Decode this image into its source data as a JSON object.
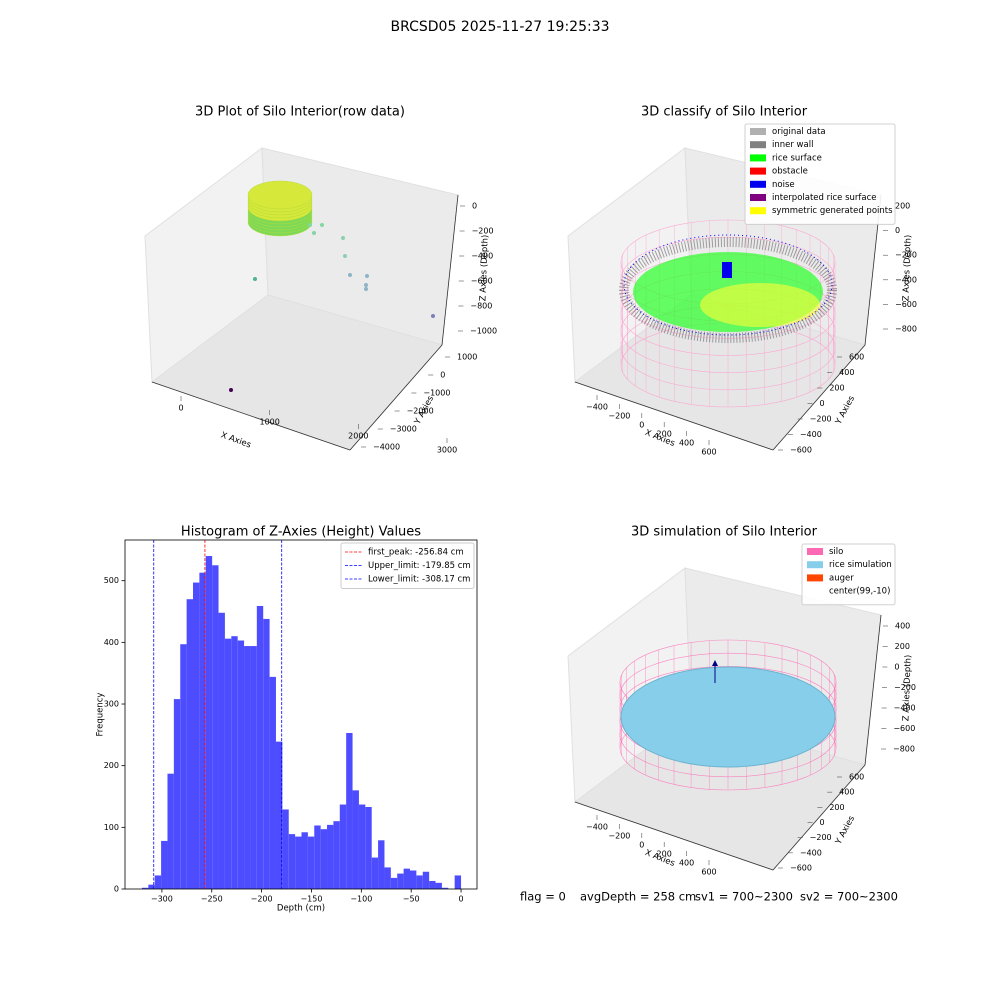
{
  "title": "BRCSD05 2025-11-27 19:25:33",
  "footer": [
    "flag = 0",
    "avgDepth = 258 cm",
    "sv1 = 700~2300",
    "sv2 = 700~2300"
  ],
  "chart_data": [
    {
      "type": "scatter3d",
      "title": "3D Plot of Silo Interior(row data)",
      "xlabel": "X Axies",
      "ylabel": "Y Axies",
      "zlabel": "Z Axies (Depth)",
      "xticks": [
        0,
        1000,
        2000,
        3000
      ],
      "yticks": [
        1000,
        0,
        {
          "value": -1000,
          "label": "−1000"
        },
        {
          "value": -2000,
          "label": "−2000"
        },
        {
          "value": -3000,
          "label": "−3000"
        },
        {
          "value": -4000,
          "label": "−4000"
        }
      ],
      "zticks": [
        0,
        {
          "value": -200,
          "label": "−200"
        },
        {
          "value": -400,
          "label": "−400"
        },
        {
          "value": -600,
          "label": "−600"
        },
        {
          "value": -800,
          "label": "−800"
        },
        {
          "value": -1000,
          "label": "−1000"
        }
      ]
    },
    {
      "type": "classify3d",
      "title": "3D classify of Silo Interior",
      "xlabel": "X Axies",
      "ylabel": "Y Axies",
      "zlabel": "Z Axies (Depth)",
      "xticks": [
        {
          "value": -400,
          "label": "−400"
        },
        {
          "value": -200,
          "label": "−200"
        },
        0,
        200,
        400,
        600
      ],
      "yticks": [
        600,
        400,
        200,
        0,
        {
          "value": -200,
          "label": "−200"
        },
        {
          "value": -400,
          "label": "−400"
        },
        {
          "value": -600,
          "label": "−600"
        }
      ],
      "zticks": [
        200,
        0,
        {
          "value": -200,
          "label": "−200"
        },
        {
          "value": -400,
          "label": "−400"
        },
        {
          "value": -600,
          "label": "−600"
        },
        {
          "value": -800,
          "label": "−800"
        }
      ],
      "legend": [
        {
          "name": "original data",
          "color": "#b0b0b0"
        },
        {
          "name": "inner wall",
          "color": "#808080"
        },
        {
          "name": "rice surface",
          "color": "#00ff00"
        },
        {
          "name": "obstacle",
          "color": "#ff0000"
        },
        {
          "name": "noise",
          "color": "#0000ee"
        },
        {
          "name": "interpolated rice surface",
          "color": "#800080"
        },
        {
          "name": "symmetric generated points",
          "color": "#ffff00"
        }
      ]
    },
    {
      "type": "histogram",
      "title": "Histogram of Z-Axies (Height) Values",
      "xlabel": "Depth (cm)",
      "ylabel": "Frequency",
      "color": "#4d4dff",
      "bins": [
        -320,
        -313.6,
        -307.2,
        -300.8,
        -294.4,
        -288,
        -281.6,
        -275.2,
        -268.8,
        -262.4,
        -256,
        -249.6,
        -243.2,
        -236.8,
        -230.4,
        -224,
        -217.6,
        -211.2,
        -204.8,
        -198.4,
        -192,
        -185.6,
        -179.2,
        -172.8,
        -166.4,
        -160,
        -153.6,
        -147.2,
        -140.8,
        -134.4,
        -128,
        -121.6,
        -115.2,
        -108.8,
        -102.4,
        -96,
        -89.6,
        -83.2,
        -76.8,
        -70.4,
        -64,
        -57.6,
        -51.2,
        -44.8,
        -38.4,
        -32,
        -25.6,
        -19.2,
        -12.8,
        -6.4,
        0
      ],
      "values": [
        2,
        7,
        22,
        78,
        187,
        308,
        397,
        470,
        497,
        513,
        540,
        525,
        448,
        406,
        410,
        403,
        394,
        394,
        459,
        438,
        344,
        239,
        129,
        89,
        85,
        92,
        85,
        103,
        97,
        104,
        110,
        137,
        253,
        160,
        137,
        133,
        51,
        79,
        35,
        18,
        25,
        33,
        30,
        22,
        28,
        13,
        10,
        2,
        0,
        22
      ],
      "vlines": [
        {
          "name": "first_peak: -256.84 cm",
          "value": -256.84,
          "color": "#ff0000"
        },
        {
          "name": "Upper_limit: -179.85 cm",
          "value": -179.85,
          "color": "#0000ff"
        },
        {
          "name": "Lower_limit: -308.17 cm",
          "value": -308.17,
          "color": "#0000ff"
        }
      ],
      "legend_position": "upper right",
      "xlim": [
        -337,
        16
      ],
      "ylim": [
        0,
        566
      ],
      "xticks": [
        {
          "value": -300,
          "label": "−300"
        },
        {
          "value": -250,
          "label": "−250"
        },
        {
          "value": -200,
          "label": "−200"
        },
        {
          "value": -150,
          "label": "−150"
        },
        {
          "value": -100,
          "label": "−100"
        },
        {
          "value": -50,
          "label": "−50"
        },
        0
      ],
      "yticks": [
        0,
        100,
        200,
        300,
        400,
        500
      ]
    },
    {
      "type": "simulation3d",
      "title": "3D simulation of Silo Interior",
      "xlabel": "X Axies",
      "ylabel": "Y Axies",
      "zlabel": "Z Axies (Depth)",
      "xticks": [
        {
          "value": -400,
          "label": "−400"
        },
        {
          "value": -200,
          "label": "−200"
        },
        0,
        200,
        400,
        600
      ],
      "yticks": [
        600,
        400,
        200,
        0,
        {
          "value": -200,
          "label": "−200"
        },
        {
          "value": -400,
          "label": "−400"
        },
        {
          "value": -600,
          "label": "−600"
        }
      ],
      "zticks": [
        400,
        200,
        0,
        {
          "value": -200,
          "label": "−200"
        },
        {
          "value": -400,
          "label": "−400"
        },
        {
          "value": -600,
          "label": "−600"
        },
        {
          "value": -800,
          "label": "−800"
        }
      ],
      "legend": [
        {
          "name": "silo",
          "color": "#ff69b4"
        },
        {
          "name": "rice simulation",
          "color": "#87ceeb"
        },
        {
          "name": "auger",
          "color": "#ff4500"
        },
        {
          "name": "center(99,-10)",
          "color": "#ffffff"
        }
      ]
    }
  ]
}
